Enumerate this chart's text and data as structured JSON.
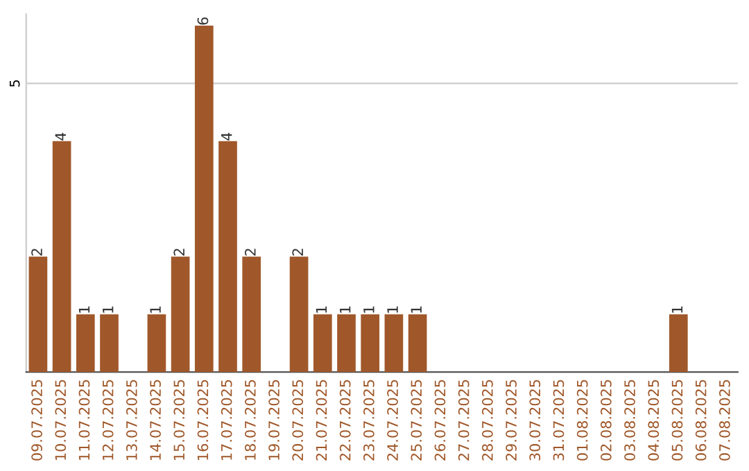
{
  "chart_data": {
    "type": "bar",
    "categories": [
      "09.07.2025",
      "10.07.2025",
      "11.07.2025",
      "12.07.2025",
      "13.07.2025",
      "14.07.2025",
      "15.07.2025",
      "16.07.2025",
      "17.07.2025",
      "18.07.2025",
      "19.07.2025",
      "20.07.2025",
      "21.07.2025",
      "22.07.2025",
      "23.07.2025",
      "24.07.2025",
      "25.07.2025",
      "26.07.2025",
      "27.07.2025",
      "28.07.2025",
      "29.07.2025",
      "30.07.2025",
      "31.07.2025",
      "01.08.2025",
      "02.08.2025",
      "03.08.2025",
      "04.08.2025",
      "05.08.2025",
      "06.08.2025",
      "07.08.2025"
    ],
    "values": [
      2,
      4,
      1,
      1,
      0,
      1,
      2,
      6,
      4,
      2,
      0,
      2,
      1,
      1,
      1,
      1,
      1,
      0,
      0,
      0,
      0,
      0,
      0,
      0,
      0,
      0,
      0,
      1,
      0,
      0
    ],
    "value_labels": [
      "2",
      "4",
      "1",
      "1",
      null,
      "1",
      "2",
      "6",
      "4",
      "2",
      null,
      "2",
      "1",
      "1",
      "1",
      "1",
      "1",
      null,
      null,
      null,
      null,
      null,
      null,
      null,
      null,
      null,
      null,
      "1",
      null,
      null
    ],
    "color": "#a0582a",
    "ylim": [
      0,
      6.2
    ],
    "yticks": [
      5
    ],
    "grid": "y"
  }
}
